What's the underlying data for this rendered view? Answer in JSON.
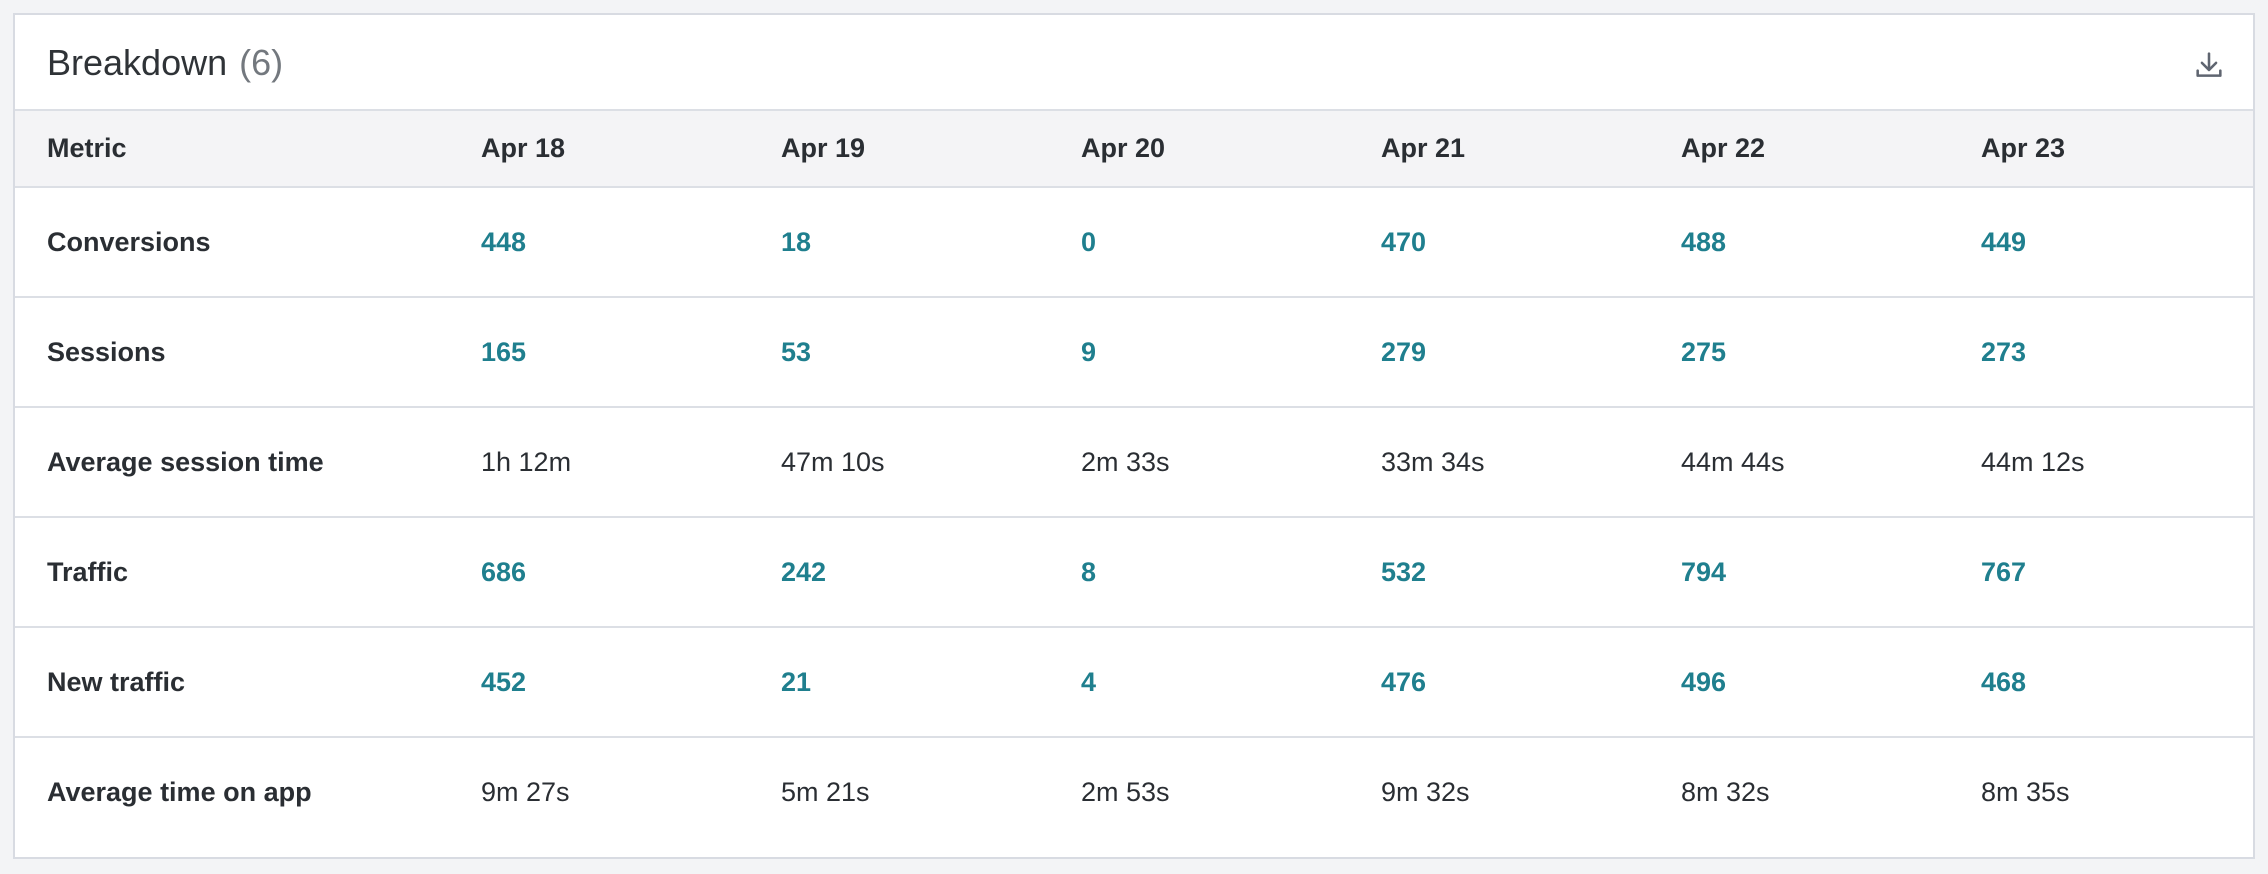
{
  "card": {
    "title": "Breakdown",
    "count": "(6)",
    "download_icon": "download-icon"
  },
  "table": {
    "columns": [
      "Metric",
      "Apr 18",
      "Apr 19",
      "Apr 20",
      "Apr 21",
      "Apr 22",
      "Apr 23"
    ],
    "rows": [
      {
        "metric": "Conversions",
        "link": true,
        "values": [
          "448",
          "18",
          "0",
          "470",
          "488",
          "449"
        ]
      },
      {
        "metric": "Sessions",
        "link": true,
        "values": [
          "165",
          "53",
          "9",
          "279",
          "275",
          "273"
        ]
      },
      {
        "metric": "Average session time",
        "link": false,
        "values": [
          "1h 12m",
          "47m 10s",
          "2m 33s",
          "33m 34s",
          "44m 44s",
          "44m 12s"
        ]
      },
      {
        "metric": "Traffic",
        "link": true,
        "values": [
          "686",
          "242",
          "8",
          "532",
          "794",
          "767"
        ]
      },
      {
        "metric": "New traffic",
        "link": true,
        "values": [
          "452",
          "21",
          "4",
          "476",
          "496",
          "468"
        ]
      },
      {
        "metric": "Average time on app",
        "link": false,
        "values": [
          "9m 27s",
          "5m 21s",
          "2m 53s",
          "9m 32s",
          "8m 32s",
          "8m 35s"
        ]
      }
    ]
  },
  "colors": {
    "link": "#1f7f8e",
    "text": "#2a2e33",
    "header_bg": "#f4f4f6",
    "border": "#dcdfe5"
  }
}
